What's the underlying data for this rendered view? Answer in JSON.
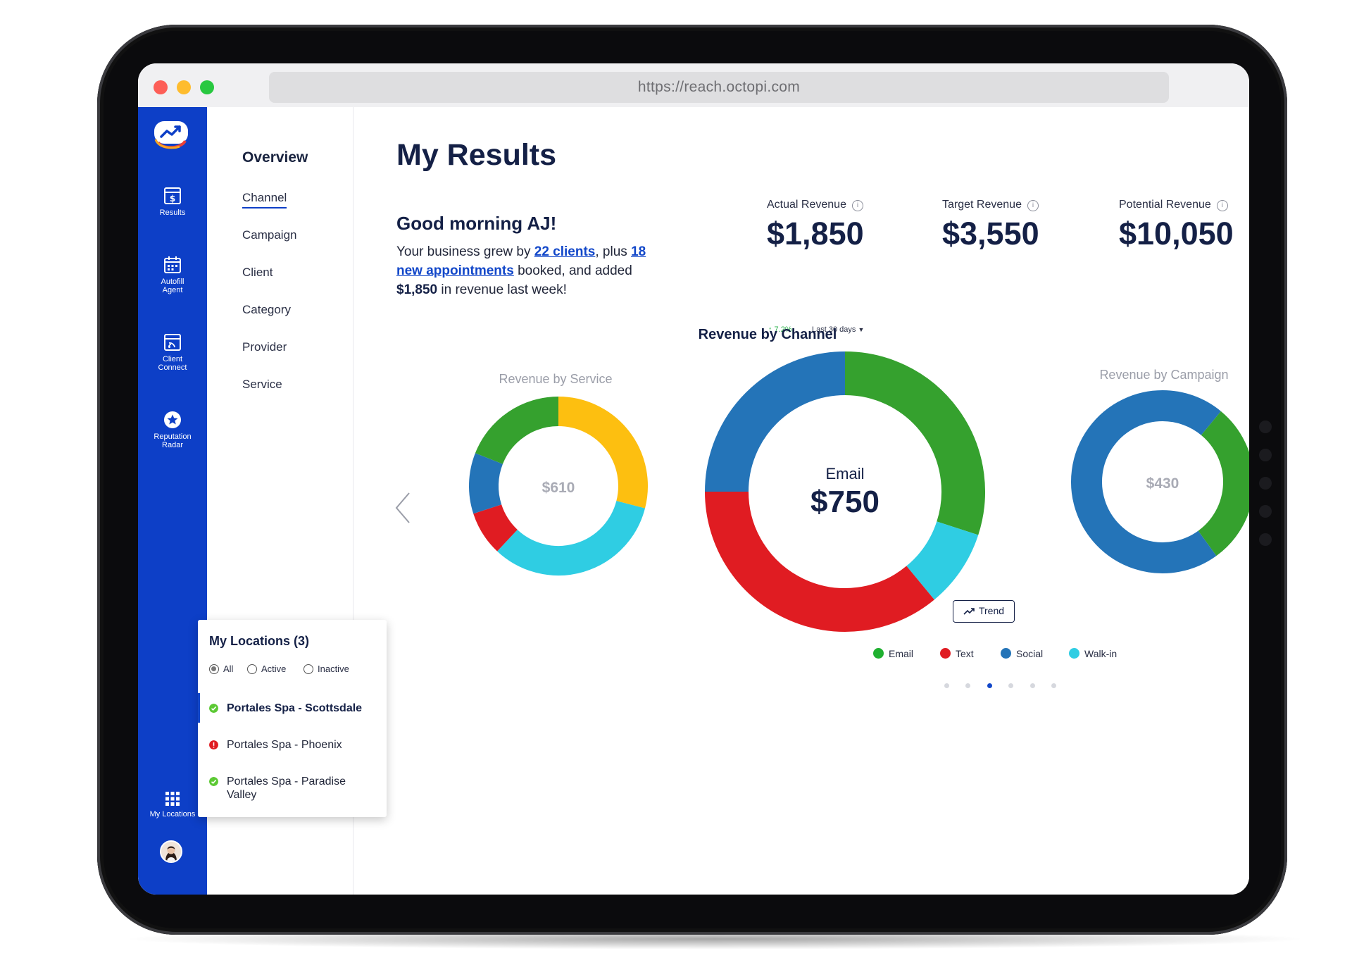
{
  "browser": {
    "url": "https://reach.octopi.com"
  },
  "rail": {
    "items": [
      {
        "label": "Results",
        "icon": "results-icon"
      },
      {
        "label": "Autofill Agent",
        "icon": "calendar-icon"
      },
      {
        "label": "Client Connect",
        "icon": "client-connect-icon"
      },
      {
        "label": "Reputation Radar",
        "icon": "star-badge-icon"
      },
      {
        "label": "My Locations",
        "icon": "grid-icon"
      }
    ],
    "bg_color": "#0d3fc7"
  },
  "subnav": {
    "title": "Overview",
    "items": [
      "Channel",
      "Campaign",
      "Client",
      "Category",
      "Provider",
      "Service"
    ],
    "active": "Channel"
  },
  "main": {
    "title": "My Results",
    "greeting": "Good morning AJ!",
    "summary": {
      "part1": "Your business grew by ",
      "clients_link": "22 clients",
      "part2": ", plus ",
      "appointments_link": "18 new appointments",
      "part3": " booked, and added ",
      "revenue": "$1,850",
      "part4": " in revenue last week!"
    },
    "kpis": [
      {
        "label": "Actual Revenue",
        "value": "$1,850"
      },
      {
        "label": "Target Revenue",
        "value": "$3,550"
      },
      {
        "label": "Potential Revenue",
        "value": "$10,050"
      }
    ],
    "delta": "↑ 7.2%",
    "range": "Last 30 days"
  },
  "chart_data": [
    {
      "type": "pie",
      "title": "Revenue by Channel",
      "center_label": "Email",
      "center_value": "$750",
      "categories": [
        "Email",
        "Walk-in",
        "Text",
        "Social"
      ],
      "values": [
        30,
        9,
        36,
        25
      ],
      "colors": [
        "#35a12e",
        "#2fcde3",
        "#e01c22",
        "#2474b8"
      ],
      "legend": [
        {
          "name": "Email",
          "color": "#1fb030"
        },
        {
          "name": "Text",
          "color": "#e01c22"
        },
        {
          "name": "Social",
          "color": "#2474b8"
        },
        {
          "name": "Walk-in",
          "color": "#2fcde3"
        }
      ]
    },
    {
      "type": "pie",
      "title": "Revenue by Service",
      "center_value": "$610",
      "values": [
        29,
        33,
        8,
        11,
        19
      ],
      "colors": [
        "#fdbf10",
        "#2fcde3",
        "#e01c22",
        "#2474b8",
        "#35a12e"
      ]
    },
    {
      "type": "pie",
      "title": "Revenue by Campaign",
      "center_value": "$430",
      "values": [
        11,
        29,
        60
      ],
      "colors": [
        "#2474b8",
        "#35a12e",
        "#2474b8"
      ]
    }
  ],
  "trend_button": "Trend",
  "carousel": {
    "count": 6,
    "active": 2
  },
  "locations": {
    "title": "My Locations (3)",
    "filters": [
      {
        "label": "All",
        "selected": true
      },
      {
        "label": "Active",
        "selected": false
      },
      {
        "label": "Inactive",
        "selected": false
      }
    ],
    "items": [
      {
        "name": "Portales Spa - Scottsdale",
        "status": "active",
        "color": "#5cc934",
        "selected": true
      },
      {
        "name": "Portales Spa - Phoenix",
        "status": "alert",
        "color": "#e01c22",
        "selected": false
      },
      {
        "name": "Portales Spa - Paradise Valley",
        "status": "active",
        "color": "#5cc934",
        "selected": false
      }
    ]
  }
}
